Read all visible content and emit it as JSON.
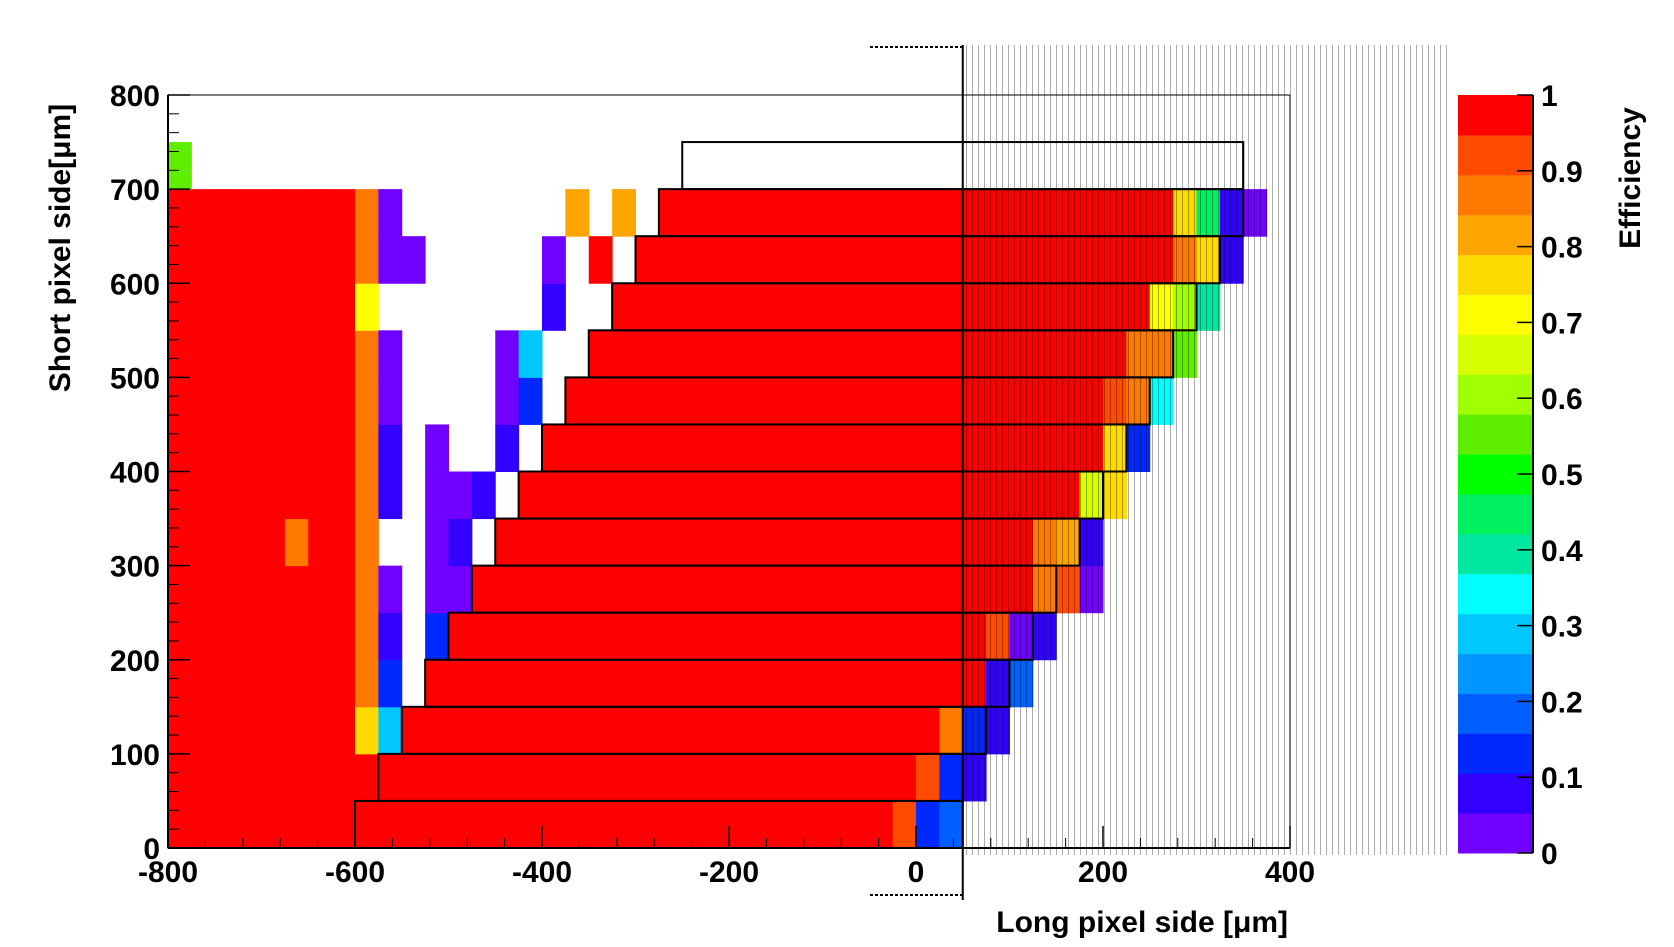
{
  "chart_data": {
    "type": "heatmap",
    "title": "",
    "xlabel": "Long pixel side [μm]",
    "ylabel": "Short pixel side[μm]",
    "zlabel": "Efficiency",
    "xlim": [
      -800,
      400
    ],
    "ylim": [
      0,
      800
    ],
    "zlim": [
      0,
      1
    ],
    "x_ticks": [
      "-800",
      "-600",
      "-400",
      "-200",
      "0",
      "200",
      "400"
    ],
    "y_ticks": [
      "0",
      "100",
      "200",
      "300",
      "400",
      "500",
      "600",
      "700",
      "800"
    ],
    "z_ticks": [
      "0",
      "0.1",
      "0.2",
      "0.3",
      "0.4",
      "0.5",
      "0.6",
      "0.7",
      "0.8",
      "0.9",
      "1"
    ],
    "bin_width": [
      25,
      50
    ],
    "palette": [
      "#7000ff",
      "#3200ff",
      "#0028ff",
      "#0060ff",
      "#0096ff",
      "#00c8ff",
      "#00ffff",
      "#00e8a0",
      "#00f060",
      "#00ff00",
      "#60ee00",
      "#a0ff00",
      "#d8ff00",
      "#ffff00",
      "#ffdc00",
      "#ffa500",
      "#ff7800",
      "#ff4b00",
      "#ff0000"
    ],
    "left_columns": [
      {
        "x": -775,
        "values": [
          1,
          1,
          1,
          1,
          1,
          1,
          1,
          1,
          1,
          1,
          1,
          1,
          1,
          1,
          0.55
        ]
      },
      {
        "x": -750,
        "values": [
          1,
          1,
          1,
          1,
          1,
          1,
          1,
          1,
          1,
          1,
          1,
          1,
          1,
          1
        ]
      },
      {
        "x": -725,
        "values": [
          1,
          1,
          1,
          1,
          1,
          1,
          1,
          1,
          1,
          1,
          1,
          1,
          1,
          1
        ]
      },
      {
        "x": -700,
        "values": [
          1,
          1,
          1,
          1,
          1,
          1,
          1,
          1,
          1,
          1,
          1,
          1,
          1,
          1
        ]
      },
      {
        "x": -675,
        "values": [
          1,
          1,
          1,
          1,
          1,
          1,
          1,
          1,
          1,
          1,
          1,
          1,
          1,
          1
        ]
      },
      {
        "x": -650,
        "values": [
          1,
          1,
          1,
          1,
          1,
          1,
          0.88,
          1,
          1,
          1,
          1,
          1,
          1,
          1
        ]
      },
      {
        "x": -625,
        "values": [
          1,
          1,
          1,
          1,
          1,
          1,
          1,
          1,
          1,
          1,
          1,
          1,
          1,
          1
        ]
      },
      {
        "x": -600,
        "values": [
          1,
          1,
          1,
          1,
          1,
          1,
          1,
          1,
          1,
          1,
          1,
          1,
          1,
          1
        ]
      },
      {
        "x": -575,
        "values": [
          1,
          1,
          0.78,
          0.88,
          0.88,
          0.88,
          0.88,
          0.88,
          0.88,
          0.88,
          0.88,
          0.72,
          0.88,
          0.88
        ]
      },
      {
        "x": -550,
        "values": [
          null,
          null,
          0.3,
          0.15,
          0.1,
          0.02,
          null,
          0.1,
          0.1,
          0.05,
          0.05,
          null,
          0.03,
          0.05
        ]
      },
      {
        "x": -525,
        "values": [
          null,
          null,
          null,
          null,
          null,
          null,
          null,
          null,
          null,
          null,
          null,
          null,
          0.05,
          null
        ]
      },
      {
        "x": -500,
        "values": [
          null,
          null,
          null,
          0.2,
          0.15,
          0.05,
          0.02,
          0.03,
          0.02,
          null,
          null,
          null,
          null,
          null
        ]
      },
      {
        "x": -475,
        "values": [
          null,
          null,
          null,
          null,
          null,
          0.05,
          0.1,
          0.05,
          null,
          null,
          null,
          null,
          null,
          null
        ]
      },
      {
        "x": -450,
        "values": [
          null,
          null,
          null,
          null,
          null,
          null,
          null,
          0.1,
          null,
          null,
          null,
          null,
          null,
          null
        ]
      },
      {
        "x": -425,
        "values": [
          null,
          null,
          null,
          null,
          null,
          null,
          null,
          null,
          0.1,
          0.02,
          0.02,
          null,
          null,
          null
        ]
      },
      {
        "x": -400,
        "values": [
          null,
          null,
          null,
          null,
          null,
          null,
          null,
          null,
          null,
          0.12,
          0.3,
          null,
          null,
          null
        ]
      },
      {
        "x": -375,
        "values": [
          null,
          null,
          null,
          null,
          null,
          null,
          null,
          null,
          null,
          null,
          null,
          0.1,
          0.05,
          null
        ]
      },
      {
        "x": -350,
        "values": [
          null,
          null,
          null,
          null,
          null,
          null,
          null,
          null,
          null,
          null,
          null,
          null,
          null,
          0.8
        ]
      },
      {
        "x": -325,
        "values": [
          null,
          null,
          null,
          null,
          null,
          null,
          null,
          null,
          null,
          null,
          null,
          null,
          0.95,
          null
        ]
      },
      {
        "x": -300,
        "values": [
          null,
          null,
          null,
          null,
          null,
          null,
          null,
          null,
          null,
          null,
          null,
          0.9,
          null,
          0.8
        ]
      }
    ],
    "rows": [
      {
        "y": 0,
        "start": -600,
        "end": 50,
        "data_end": 25,
        "tail": [
          0.9,
          0.15,
          0.2
        ]
      },
      {
        "y": 50,
        "start": -575,
        "end": 50,
        "data_end": 50,
        "tail": [
          0.9,
          0.15,
          0.1
        ]
      },
      {
        "y": 100,
        "start": -550,
        "end": 75,
        "data_end": 75,
        "tail": [
          0.88,
          0.15,
          0.1
        ]
      },
      {
        "y": 150,
        "start": -525,
        "end": 100,
        "data_end": 100,
        "tail": [
          1,
          0.1,
          0.2
        ]
      },
      {
        "y": 200,
        "start": -500,
        "end": 125,
        "data_end": 125,
        "tail": [
          0.92,
          0.05,
          0.1
        ]
      },
      {
        "y": 250,
        "start": -475,
        "end": 150,
        "data_end": 175,
        "tail": [
          0.88,
          0.92,
          0.05
        ]
      },
      {
        "y": 300,
        "start": -450,
        "end": 175,
        "data_end": 175,
        "tail": [
          0.85,
          0.8,
          0.1
        ]
      },
      {
        "y": 350,
        "start": -425,
        "end": 200,
        "data_end": 200,
        "tail": [
          0.95,
          0.65,
          0.75
        ]
      },
      {
        "y": 400,
        "start": -400,
        "end": 225,
        "data_end": 225,
        "tail": [
          0.95,
          0.78,
          0.15
        ]
      },
      {
        "y": 450,
        "start": -375,
        "end": 250,
        "data_end": 250,
        "tail": [
          0.92,
          0.88,
          0.35
        ]
      },
      {
        "y": 500,
        "start": -350,
        "end": 275,
        "data_end": 275,
        "tail": [
          0.88,
          0.85,
          0.55
        ]
      },
      {
        "y": 550,
        "start": -325,
        "end": 300,
        "data_end": 300,
        "tail": [
          0.7,
          0.6,
          0.4
        ]
      },
      {
        "y": 600,
        "start": -300,
        "end": 325,
        "data_end": 325,
        "tail": [
          0.85,
          0.75,
          0.1
        ]
      },
      {
        "y": 650,
        "start": -275,
        "end": 350,
        "data_end": 350,
        "tail": [
          0.75,
          0.45,
          0.1,
          0.05
        ]
      },
      {
        "y": 700,
        "start": -250,
        "end": 350,
        "data_end": null,
        "tail": []
      }
    ]
  }
}
